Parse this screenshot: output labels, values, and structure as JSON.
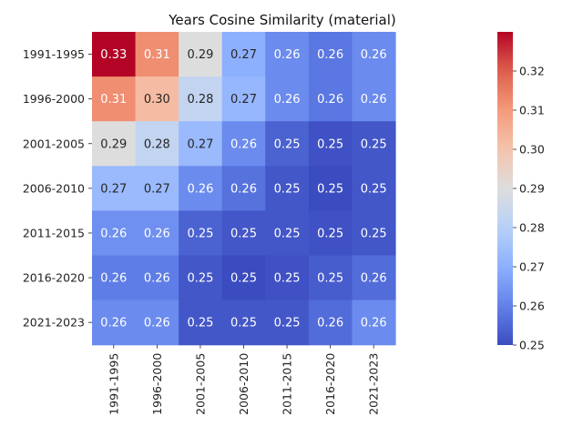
{
  "chart_data": {
    "type": "heatmap",
    "title": "Years Cosine Similarity (material)",
    "xlabel": "",
    "ylabel": "",
    "rows": [
      "1991-1995",
      "1996-2000",
      "2001-2005",
      "2006-2010",
      "2011-2015",
      "2016-2020",
      "2021-2023"
    ],
    "columns": [
      "1991-1995",
      "1996-2000",
      "2001-2005",
      "2006-2010",
      "2011-2015",
      "2016-2020",
      "2021-2023"
    ],
    "values": [
      [
        0.33,
        0.312,
        0.29,
        0.27,
        0.262,
        0.258,
        0.262
      ],
      [
        0.312,
        0.302,
        0.283,
        0.272,
        0.262,
        0.258,
        0.262
      ],
      [
        0.29,
        0.283,
        0.273,
        0.262,
        0.254,
        0.251,
        0.252
      ],
      [
        0.273,
        0.273,
        0.262,
        0.257,
        0.252,
        0.25,
        0.252
      ],
      [
        0.263,
        0.263,
        0.254,
        0.252,
        0.252,
        0.251,
        0.252
      ],
      [
        0.259,
        0.259,
        0.252,
        0.25,
        0.251,
        0.253,
        0.256
      ],
      [
        0.262,
        0.262,
        0.252,
        0.252,
        0.252,
        0.256,
        0.262
      ]
    ],
    "labels": [
      [
        "0.33",
        "0.31",
        "0.29",
        "0.27",
        "0.26",
        "0.26",
        "0.26"
      ],
      [
        "0.31",
        "0.30",
        "0.28",
        "0.27",
        "0.26",
        "0.26",
        "0.26"
      ],
      [
        "0.29",
        "0.28",
        "0.27",
        "0.26",
        "0.25",
        "0.25",
        "0.25"
      ],
      [
        "0.27",
        "0.27",
        "0.26",
        "0.26",
        "0.25",
        "0.25",
        "0.25"
      ],
      [
        "0.26",
        "0.26",
        "0.25",
        "0.25",
        "0.25",
        "0.25",
        "0.25"
      ],
      [
        "0.26",
        "0.26",
        "0.25",
        "0.25",
        "0.25",
        "0.25",
        "0.26"
      ],
      [
        "0.26",
        "0.26",
        "0.25",
        "0.25",
        "0.25",
        "0.26",
        "0.26"
      ]
    ],
    "colorscale": "coolwarm",
    "vmin": 0.25,
    "vmax": 0.33,
    "colorbar": {
      "ticks": [
        0.25,
        0.26,
        0.27,
        0.28,
        0.29,
        0.3,
        0.31,
        0.32
      ],
      "tick_labels": [
        "0.25",
        "0.26",
        "0.27",
        "0.28",
        "0.29",
        "0.30",
        "0.31",
        "0.32"
      ],
      "placement": "right"
    },
    "grid": false
  }
}
